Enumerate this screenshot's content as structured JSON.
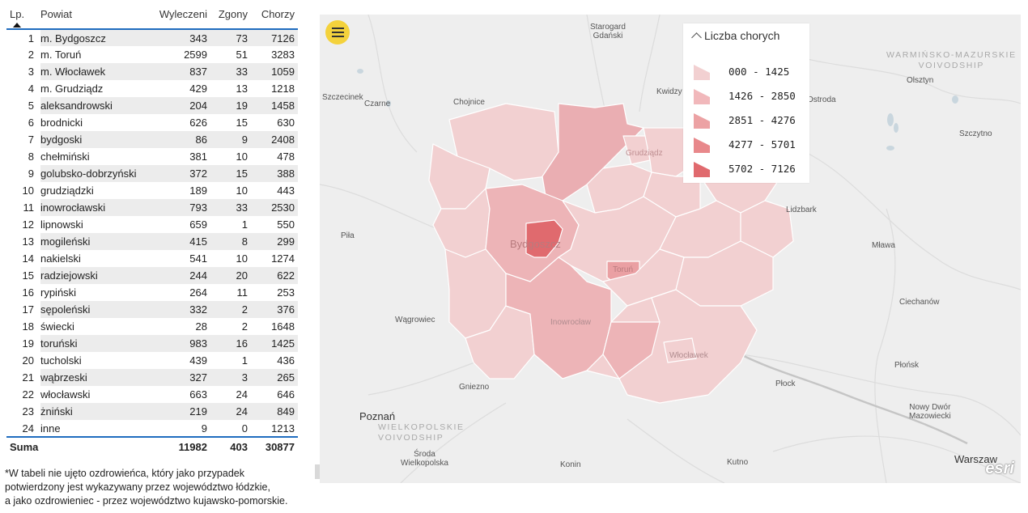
{
  "table": {
    "headers": {
      "lp": "Lp.",
      "name": "Powiat",
      "wyl": "Wyleczeni",
      "zgony": "Zgony",
      "chorzy": "Chorzy"
    },
    "rows": [
      {
        "lp": "1",
        "name": "m. Bydgoszcz",
        "wyl": "343",
        "zgony": "73",
        "chorzy": "7126"
      },
      {
        "lp": "2",
        "name": "m. Toruń",
        "wyl": "2599",
        "zgony": "51",
        "chorzy": "3283"
      },
      {
        "lp": "3",
        "name": "m. Włocławek",
        "wyl": "837",
        "zgony": "33",
        "chorzy": "1059"
      },
      {
        "lp": "4",
        "name": "m. Grudziądz",
        "wyl": "429",
        "zgony": "13",
        "chorzy": "1218"
      },
      {
        "lp": "5",
        "name": "aleksandrowski",
        "wyl": "204",
        "zgony": "19",
        "chorzy": "1458"
      },
      {
        "lp": "6",
        "name": "brodnicki",
        "wyl": "626",
        "zgony": "15",
        "chorzy": "630"
      },
      {
        "lp": "7",
        "name": "bydgoski",
        "wyl": "86",
        "zgony": "9",
        "chorzy": "2408"
      },
      {
        "lp": "8",
        "name": "chełmiński",
        "wyl": "381",
        "zgony": "10",
        "chorzy": "478"
      },
      {
        "lp": "9",
        "name": "golubsko-dobrzyński",
        "wyl": "372",
        "zgony": "15",
        "chorzy": "388"
      },
      {
        "lp": "10",
        "name": "grudziądzki",
        "wyl": "189",
        "zgony": "10",
        "chorzy": "443"
      },
      {
        "lp": "11",
        "name": "inowrocławski",
        "wyl": "793",
        "zgony": "33",
        "chorzy": "2530"
      },
      {
        "lp": "12",
        "name": "lipnowski",
        "wyl": "659",
        "zgony": "1",
        "chorzy": "550"
      },
      {
        "lp": "13",
        "name": "mogileński",
        "wyl": "415",
        "zgony": "8",
        "chorzy": "299"
      },
      {
        "lp": "14",
        "name": "nakielski",
        "wyl": "541",
        "zgony": "10",
        "chorzy": "1274"
      },
      {
        "lp": "15",
        "name": "radziejowski",
        "wyl": "244",
        "zgony": "20",
        "chorzy": "622"
      },
      {
        "lp": "16",
        "name": "rypiński",
        "wyl": "264",
        "zgony": "11",
        "chorzy": "253"
      },
      {
        "lp": "17",
        "name": "sępoleński",
        "wyl": "332",
        "zgony": "2",
        "chorzy": "376"
      },
      {
        "lp": "18",
        "name": "świecki",
        "wyl": "28",
        "zgony": "2",
        "chorzy": "1648"
      },
      {
        "lp": "19",
        "name": "toruński",
        "wyl": "983",
        "zgony": "16",
        "chorzy": "1425"
      },
      {
        "lp": "20",
        "name": "tucholski",
        "wyl": "439",
        "zgony": "1",
        "chorzy": "436"
      },
      {
        "lp": "21",
        "name": "wąbrzeski",
        "wyl": "327",
        "zgony": "3",
        "chorzy": "265"
      },
      {
        "lp": "22",
        "name": "włocławski",
        "wyl": "663",
        "zgony": "24",
        "chorzy": "646"
      },
      {
        "lp": "23",
        "name": "żniński",
        "wyl": "219",
        "zgony": "24",
        "chorzy": "849"
      },
      {
        "lp": "24",
        "name": "inne",
        "wyl": "9",
        "zgony": "0",
        "chorzy": "1213"
      }
    ],
    "total": {
      "label": "Suma",
      "wyl": "11982",
      "zgony": "403",
      "chorzy": "30877"
    }
  },
  "footnote": {
    "line1": "*W tabeli nie ujęto ozdrowieńca, który jako przypadek",
    "line2": "potwierdzony jest wykazywany przez województwo łódzkie,",
    "line3": "a jako ozdrowieniec - przez województwo kujawsko-pomorskie."
  },
  "legend": {
    "title": "Liczba chorych",
    "items": [
      {
        "label": "000 - 1425",
        "color": "#f2d0d1"
      },
      {
        "label": "1426 - 2850",
        "color": "#f1b8bb"
      },
      {
        "label": "2851 - 4276",
        "color": "#eca2a4"
      },
      {
        "label": "4277 - 5701",
        "color": "#e8888b"
      },
      {
        "label": "5702 - 7126",
        "color": "#e06a6e"
      }
    ]
  },
  "map_labels": {
    "starogard": "Starogard\nGdański",
    "warminsko": "WARMIŃSKO-MAZURSKIE\nVOIVODSHIP",
    "olsztyn": "Olsztyn",
    "kwidzyn": "Kwidzy",
    "szczecinek": "Szczecinek",
    "czarne": "Czarne",
    "chojnice": "Chojnice",
    "ostroda": "Ostroda",
    "szczytno": "Szczytno",
    "grudziadz": "Grudziądz",
    "lidzbark": "Lidzbark",
    "pila": "Piła",
    "bydgoszcz": "Bydgoszcz",
    "torun": "Toruń",
    "mlawa": "Mława",
    "wagrowiec": "Wągrowiec",
    "inowroclaw": "Inowrocław",
    "ciechanow": "Ciechanów",
    "wloclawek": "Włocławek",
    "plonsk": "Płońsk",
    "gniezno": "Gniezno",
    "plock": "Płock",
    "poznan": "Poznań",
    "wielkopolskie": "WIELKOPOLSKIE\nVOIVODSHIP",
    "nowydwor": "Nowy Dwór\nMazowiecki",
    "sroda": "Środa\nWielkopolska",
    "konin": "Konin",
    "kutno": "Kutno",
    "warszaw": "Warszaw",
    "esri": "esri"
  },
  "colors": {
    "accent": "#1f6cbf",
    "menu_button": "#f4d23c"
  },
  "icons": {
    "menu": "hamburger-icon",
    "sort": "sort-ascending-icon",
    "legend_toggle": "chevron-up-icon"
  }
}
